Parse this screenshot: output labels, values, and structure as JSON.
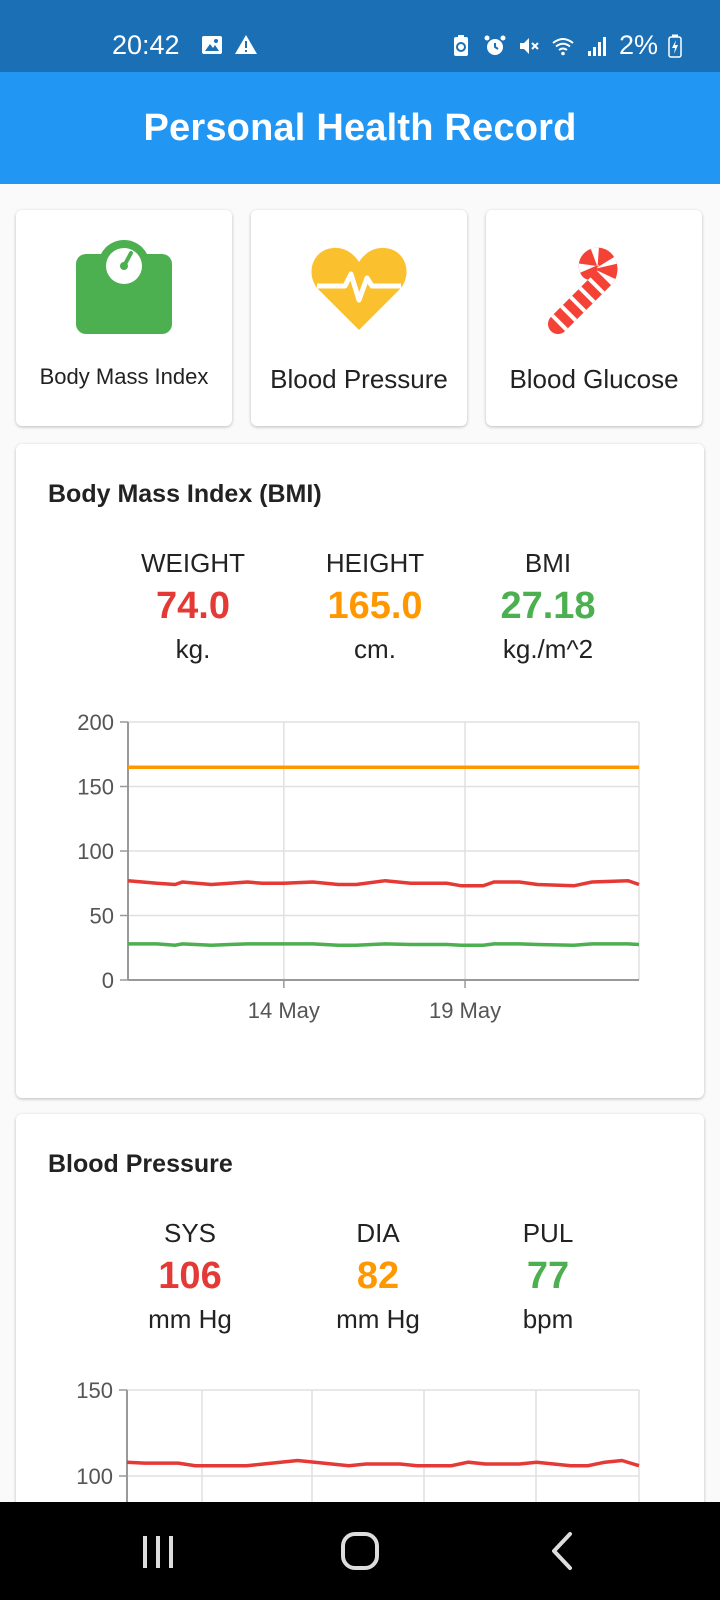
{
  "status_bar": {
    "time": "20:42",
    "battery": "2%"
  },
  "app_bar": {
    "title": "Personal Health Record"
  },
  "categories": [
    {
      "label": "Body Mass Index",
      "icon": "scale-icon",
      "color": "#4caf50"
    },
    {
      "label": "Blood Pressure",
      "icon": "heart-pulse-icon",
      "color": "#fbc02d"
    },
    {
      "label": "Blood Glucose",
      "icon": "candy-cane-icon",
      "color": "#f44336"
    }
  ],
  "bmi": {
    "title": "Body Mass Index (BMI)",
    "metrics": [
      {
        "label": "WEIGHT",
        "value": "74.0",
        "unit": "kg.",
        "color": "#e53935"
      },
      {
        "label": "HEIGHT",
        "value": "165.0",
        "unit": "cm.",
        "color": "#ff9800"
      },
      {
        "label": "BMI",
        "value": "27.18",
        "unit": "kg./m^2",
        "color": "#4caf50"
      }
    ]
  },
  "bp": {
    "title": "Blood Pressure",
    "metrics": [
      {
        "label": "SYS",
        "value": "106",
        "unit": "mm Hg",
        "color": "#e53935"
      },
      {
        "label": "DIA",
        "value": "82",
        "unit": "mm Hg",
        "color": "#ff9800"
      },
      {
        "label": "PUL",
        "value": "77",
        "unit": "bpm",
        "color": "#4caf50"
      }
    ]
  },
  "chart_data": [
    {
      "type": "line",
      "ylim": [
        0,
        200
      ],
      "yticks": [
        0,
        50,
        100,
        150,
        200
      ],
      "xticks": [
        "14 May",
        "19 May"
      ],
      "xlim_days": [
        9.7,
        23.8
      ],
      "xtick_days": [
        14,
        19
      ],
      "x_days": [
        9.7,
        10.5,
        11.0,
        11.2,
        12.0,
        12.5,
        13.0,
        13.4,
        14.0,
        14.8,
        15.5,
        16.0,
        16.8,
        17.5,
        18.0,
        18.5,
        18.9,
        19.5,
        19.8,
        20.5,
        21.0,
        22.0,
        22.5,
        23.5,
        23.8
      ],
      "series": [
        {
          "color": "#ff9800",
          "values": [
            165,
            165,
            165,
            165,
            165,
            165,
            165,
            165,
            165,
            165,
            165,
            165,
            165,
            165,
            165,
            165,
            165,
            165,
            165,
            165,
            165,
            165,
            165,
            165,
            165
          ]
        },
        {
          "color": "#e53935",
          "values": [
            77,
            75,
            74,
            76,
            74,
            75,
            76,
            75,
            75,
            76,
            74,
            74,
            77,
            75,
            75,
            75,
            73,
            73,
            76,
            76,
            74,
            73,
            76,
            77,
            74
          ]
        },
        {
          "color": "#4caf50",
          "values": [
            28,
            28,
            27,
            28,
            27,
            27.5,
            28,
            28,
            28,
            28,
            27,
            27,
            28,
            27.5,
            27.5,
            27.5,
            27,
            27,
            28,
            28,
            27.5,
            27,
            28,
            28,
            27.5
          ]
        }
      ]
    },
    {
      "type": "line",
      "ylim": [
        100,
        150
      ],
      "yticks": [
        100,
        150
      ],
      "x_index": [
        0,
        1,
        2,
        3,
        4,
        5,
        6,
        7,
        8,
        9,
        10,
        11,
        12,
        13,
        14,
        15,
        16,
        17,
        18,
        19,
        20,
        21,
        22,
        23,
        24,
        25,
        26,
        27,
        28,
        29,
        30
      ],
      "series": [
        {
          "color": "#e53935",
          "values": [
            108,
            107.5,
            107.5,
            107.5,
            106,
            106,
            106,
            106,
            107,
            108,
            109,
            108,
            107,
            106,
            107,
            107,
            107,
            106,
            106,
            106,
            108,
            107,
            107,
            107,
            108,
            107,
            106,
            106,
            108,
            109,
            106
          ]
        }
      ]
    }
  ]
}
